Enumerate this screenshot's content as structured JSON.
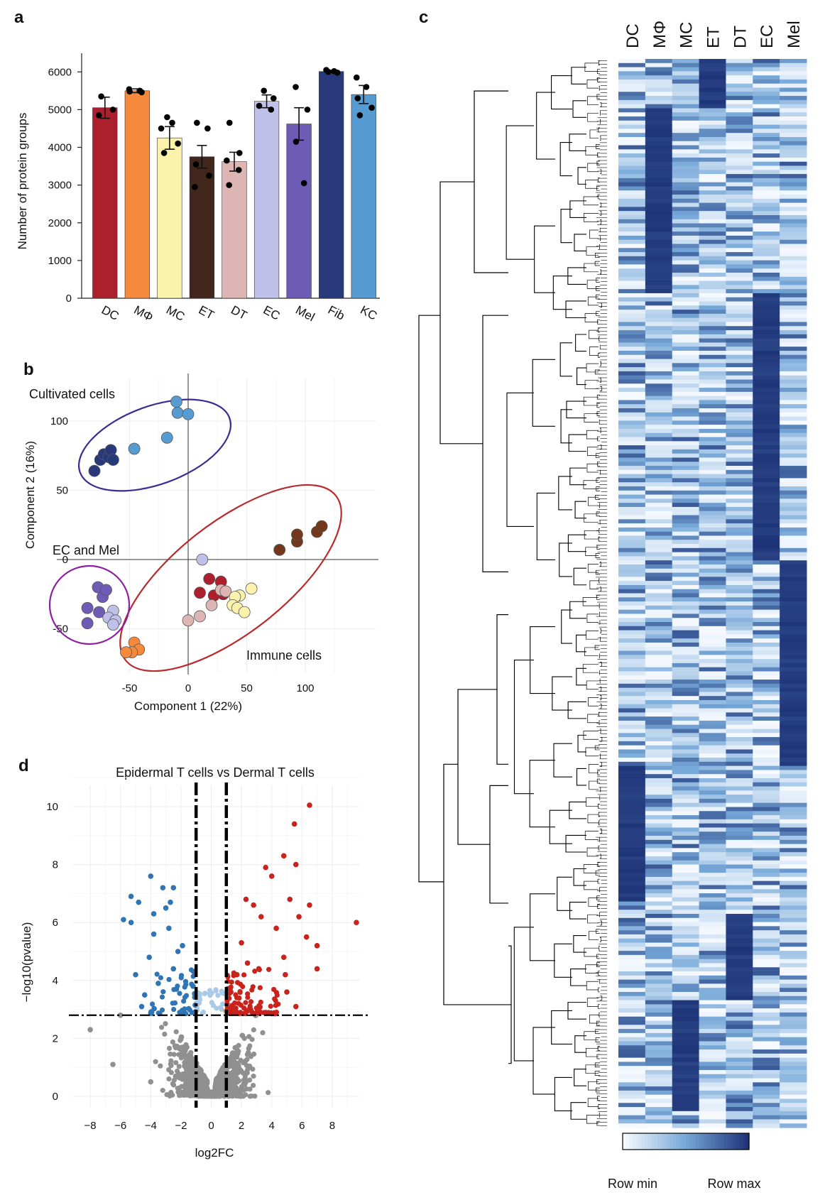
{
  "panels": {
    "a": {
      "letter": "a"
    },
    "b": {
      "letter": "b"
    },
    "c": {
      "letter": "c"
    },
    "d": {
      "letter": "d"
    }
  },
  "chart_data": [
    {
      "panel": "a",
      "type": "bar",
      "ylabel": "Number of protein groups",
      "ylim": [
        0,
        6400
      ],
      "yticks": [
        0,
        1000,
        2000,
        3000,
        4000,
        5000,
        6000
      ],
      "categories": [
        "DC",
        "MΦ",
        "MC",
        "ET",
        "DT",
        "EC",
        "Mel",
        "Fib",
        "KC"
      ],
      "values": [
        5050,
        5500,
        4250,
        3750,
        3620,
        5220,
        4620,
        6010,
        5400
      ],
      "errors": [
        280,
        50,
        300,
        300,
        250,
        170,
        430,
        30,
        240
      ],
      "colors": [
        "#ad1f2c",
        "#f6893b",
        "#fbf3ac",
        "#40261b",
        "#ddb6b3",
        "#c0c1e8",
        "#6d5bb5",
        "#27397a",
        "#569cd2"
      ],
      "replicates": [
        [
          5350,
          5000,
          4850
        ],
        [
          5540,
          5500,
          5480,
          5460
        ],
        [
          4800,
          4650,
          4500,
          4100,
          3850
        ],
        [
          4650,
          4500,
          3550,
          3250,
          2950
        ],
        [
          4650,
          3850,
          3650,
          3400,
          3000
        ],
        [
          5500,
          5300,
          5100,
          5000
        ],
        [
          5600,
          5000,
          4150,
          3050
        ],
        [
          6050,
          6020,
          6000,
          5980
        ],
        [
          5850,
          5600,
          5300,
          5050,
          4850
        ]
      ]
    },
    {
      "panel": "b",
      "type": "scatter",
      "xlabel": "Component 1 (22%)",
      "ylabel": "Component 2 (16%)",
      "xlim": [
        -115,
        160
      ],
      "ylim": [
        -85,
        135
      ],
      "xticks": [
        -50,
        0,
        50,
        100
      ],
      "yticks": [
        -50,
        0,
        50,
        100
      ],
      "grid": true,
      "annotations": [
        "Cultivated cells",
        "EC and Mel",
        "Immune cells"
      ],
      "groups": [
        {
          "color": "#27397a",
          "points": [
            [
              -80,
              64
            ],
            [
              -75,
              72
            ],
            [
              -72,
              76
            ],
            [
              -68,
              74
            ],
            [
              -66,
              79
            ],
            [
              -64,
              72
            ]
          ]
        },
        {
          "color": "#569cd2",
          "points": [
            [
              -46,
              80
            ],
            [
              -18,
              88
            ],
            [
              -10,
              114
            ],
            [
              -9,
              106
            ],
            [
              0,
              105
            ]
          ]
        },
        {
          "color": "#6d5bb5",
          "points": [
            [
              -77,
              -20
            ],
            [
              -73,
              -27
            ],
            [
              -70,
              -22
            ],
            [
              -86,
              -35
            ],
            [
              -76,
              -38
            ],
            [
              -86,
              -46
            ]
          ]
        },
        {
          "color": "#c0c1e8",
          "points": [
            [
              -64,
              -37
            ],
            [
              -68,
              -42
            ],
            [
              -62,
              -44
            ],
            [
              -64,
              -47
            ]
          ]
        },
        {
          "color": "#f6893b",
          "points": [
            [
              -46,
              -60
            ],
            [
              -42,
              -65
            ],
            [
              -48,
              -67
            ],
            [
              -53,
              -67
            ]
          ]
        },
        {
          "color": "#ad1f2c",
          "points": [
            [
              18,
              -14
            ],
            [
              28,
              -16
            ],
            [
              10,
              -24
            ],
            [
              30,
              -25
            ],
            [
              22,
              -26
            ]
          ]
        },
        {
          "color": "#ddb6b3",
          "points": [
            [
              28,
              -22
            ],
            [
              32,
              -23
            ],
            [
              20,
              -33
            ],
            [
              10,
              -41
            ],
            [
              0,
              -44
            ]
          ]
        },
        {
          "color": "#fbf3ac",
          "points": [
            [
              54,
              -21
            ],
            [
              44,
              -26
            ],
            [
              40,
              -27
            ],
            [
              38,
              -33
            ],
            [
              42,
              -35
            ],
            [
              48,
              -38
            ]
          ]
        },
        {
          "color": "#c0c1e8",
          "points": [
            [
              12,
              0
            ]
          ]
        },
        {
          "color": "#73381b",
          "points": [
            [
              78,
              7
            ],
            [
              93,
              13
            ],
            [
              93,
              18
            ],
            [
              110,
              20
            ],
            [
              114,
              24
            ]
          ]
        }
      ]
    },
    {
      "panel": "c",
      "type": "heatmap",
      "columns": [
        "DC",
        "MΦ",
        "MC",
        "ET",
        "DT",
        "EC",
        "Mel"
      ],
      "legend_min": "Row min",
      "legend_max": "Row max",
      "blocks": [
        {
          "start": 0.0,
          "end": 0.047,
          "high": "ET"
        },
        {
          "start": 0.047,
          "end": 0.22,
          "high": "MΦ"
        },
        {
          "start": 0.22,
          "end": 0.23,
          "high": "EC"
        },
        {
          "start": 0.23,
          "end": 0.47,
          "high": "EC"
        },
        {
          "start": 0.47,
          "end": 0.66,
          "high": "Mel"
        },
        {
          "start": 0.66,
          "end": 0.79,
          "high": "DC"
        },
        {
          "start": 0.8,
          "end": 0.88,
          "high": "DT"
        },
        {
          "start": 0.88,
          "end": 0.985,
          "high": "MC"
        }
      ]
    },
    {
      "panel": "d",
      "type": "scatter",
      "title": "Epidermal T cells vs Dermal T cells",
      "xlabel": "log2FC",
      "ylabel": "−log10(pvalue)",
      "xlim": [
        -9.2,
        10
      ],
      "ylim": [
        -0.4,
        11.1
      ],
      "xticks": [
        -8,
        -6,
        -4,
        -2,
        0,
        2,
        4,
        6,
        8
      ],
      "yticks": [
        0,
        2,
        4,
        6,
        8,
        10
      ],
      "grid": true,
      "fc_thresholds": [
        -1,
        1
      ],
      "p_threshold": 2.8,
      "colors": {
        "down": "#2f75b5",
        "up": "#c8231c",
        "ns": "#909090",
        "ns_fc": "#f5a34f",
        "ns_p": "#a9cbe8"
      },
      "highlight_points": [
        [
          9.6,
          6.0
        ],
        [
          6.5,
          10.05
        ],
        [
          5.5,
          9.4
        ],
        [
          5.6,
          8.0
        ],
        [
          4.8,
          8.3
        ],
        [
          4.0,
          7.6
        ],
        [
          3.6,
          7.9
        ],
        [
          6.5,
          6.6
        ],
        [
          5.8,
          6.2
        ],
        [
          5.2,
          6.8
        ],
        [
          6.3,
          5.5
        ],
        [
          7.0,
          5.2
        ],
        [
          7.0,
          4.4
        ],
        [
          5.6,
          3.1
        ],
        [
          4.3,
          5.8
        ],
        [
          3.3,
          6.2
        ],
        [
          2.8,
          6.6
        ],
        [
          2.3,
          6.8
        ],
        [
          2.0,
          5.3
        ],
        [
          4.8,
          4.8
        ],
        [
          4.9,
          4.2
        ],
        [
          5.0,
          3.6
        ],
        [
          2.4,
          4.6
        ],
        [
          1.7,
          4.2
        ],
        [
          1.3,
          3.6
        ],
        [
          -4.0,
          7.6
        ],
        [
          -3.2,
          7.2
        ],
        [
          -2.5,
          7.2
        ],
        [
          -5.3,
          6.9
        ],
        [
          -4.8,
          6.7
        ],
        [
          -3.0,
          6.5
        ],
        [
          -2.7,
          6.7
        ],
        [
          -3.8,
          6.3
        ],
        [
          -5.8,
          6.1
        ],
        [
          -5.3,
          6.0
        ],
        [
          -2.8,
          5.8
        ],
        [
          -3.8,
          5.6
        ],
        [
          -2.2,
          5.0
        ],
        [
          -4.1,
          4.8
        ],
        [
          -1.9,
          5.2
        ],
        [
          -2.5,
          4.4
        ],
        [
          -5.0,
          4.2
        ],
        [
          -3.5,
          3.9
        ],
        [
          -4.4,
          3.5
        ],
        [
          -1.2,
          3.8
        ],
        [
          -2.3,
          3.7
        ],
        [
          -6.0,
          2.8
        ],
        [
          -4.6,
          3.1
        ],
        [
          -8.0,
          2.3
        ],
        [
          -6.5,
          1.1
        ],
        [
          -4.0,
          0.5
        ]
      ]
    }
  ]
}
